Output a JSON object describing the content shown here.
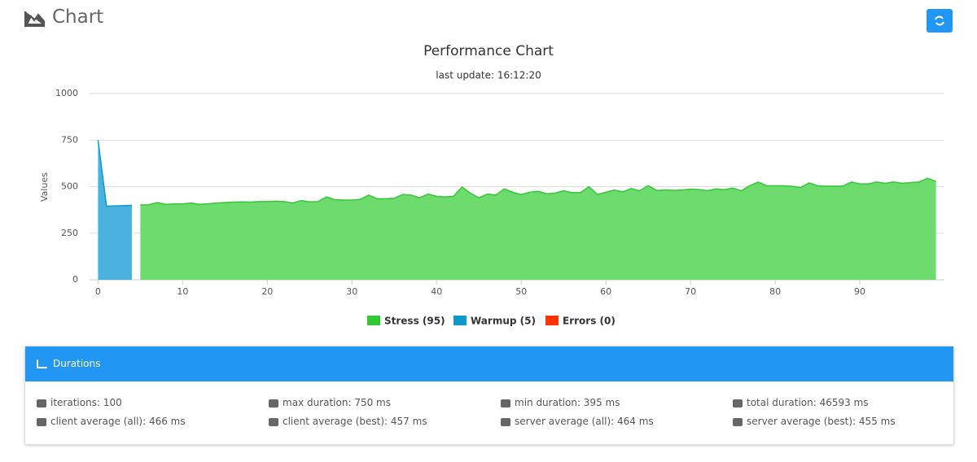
{
  "header": {
    "title": "Chart"
  },
  "chart_data": {
    "type": "area",
    "title": "Performance Chart",
    "subtitle": "last update: 16:12:20",
    "y_label": "Values",
    "xlim": [
      -1,
      100
    ],
    "xticks": [
      0,
      10,
      20,
      30,
      40,
      50,
      60,
      70,
      80,
      90
    ],
    "ylim": [
      0,
      1000
    ],
    "yticks": [
      0,
      250,
      500,
      750,
      1000
    ],
    "grid": true,
    "series": [
      {
        "name": "Stress (95)",
        "color": "#66d966",
        "x": [
          5,
          6,
          7,
          8,
          9,
          10,
          11,
          12,
          13,
          14,
          15,
          16,
          17,
          18,
          19,
          20,
          21,
          22,
          23,
          24,
          25,
          26,
          27,
          28,
          29,
          30,
          31,
          32,
          33,
          34,
          35,
          36,
          37,
          38,
          39,
          40,
          41,
          42,
          43,
          44,
          45,
          46,
          47,
          48,
          49,
          50,
          51,
          52,
          53,
          54,
          55,
          56,
          57,
          58,
          59,
          60,
          61,
          62,
          63,
          64,
          65,
          66,
          67,
          68,
          69,
          70,
          71,
          72,
          73,
          74,
          75,
          76,
          77,
          78,
          79,
          80,
          81,
          82,
          83,
          84,
          85,
          86,
          87,
          88,
          89,
          90,
          91,
          92,
          93,
          94,
          95,
          96,
          97,
          98,
          99
        ],
        "values": [
          402,
          403,
          415,
          405,
          407,
          408,
          412,
          405,
          408,
          412,
          415,
          417,
          418,
          417,
          420,
          420,
          422,
          420,
          412,
          425,
          418,
          420,
          445,
          430,
          428,
          428,
          432,
          455,
          435,
          435,
          438,
          458,
          455,
          440,
          460,
          448,
          445,
          448,
          498,
          465,
          440,
          460,
          455,
          488,
          470,
          458,
          470,
          475,
          462,
          465,
          478,
          468,
          468,
          500,
          458,
          470,
          482,
          472,
          490,
          478,
          505,
          480,
          483,
          480,
          482,
          487,
          485,
          478,
          488,
          484,
          492,
          478,
          505,
          525,
          505,
          505,
          505,
          502,
          495,
          520,
          505,
          503,
          503,
          503,
          525,
          515,
          515,
          525,
          518,
          525,
          518,
          522,
          525,
          545,
          528
        ]
      },
      {
        "name": "Warmup (5)",
        "color": "#41aedd",
        "x": [
          0,
          1,
          2,
          3,
          4
        ],
        "values": [
          750,
          395,
          397,
          398,
          400
        ]
      },
      {
        "name": "Errors (0)",
        "color": "#ff3300",
        "x": [],
        "values": []
      }
    ]
  },
  "durations": {
    "title": "Durations",
    "items": [
      "iterations: 100",
      "max duration: 750 ms",
      "min duration: 395 ms",
      "total duration: 46593 ms",
      "client average (all): 466 ms",
      "client average (best): 457 ms",
      "server average (all): 464 ms",
      "server average (best): 455 ms"
    ]
  }
}
